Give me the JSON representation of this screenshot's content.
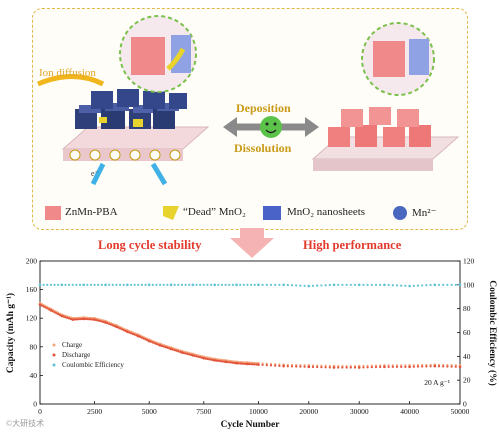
{
  "schematic": {
    "ion_diffusion": "Ion diffusion",
    "deposition": "Deposition",
    "dissolution": "Dissolution",
    "electron_label": "e⁻",
    "legend": [
      {
        "label": "ZnMn-PBA",
        "color": "#f08a8a"
      },
      {
        "label": "“Dead” MnO₂",
        "color": "#e8d22c"
      },
      {
        "label": "MnO₂ nanosheets",
        "color": "#4a63c8"
      },
      {
        "label": "Mn²⁻",
        "color": "#4a67c0"
      }
    ],
    "banner_left": "Long cycle stability",
    "banner_right": "High performance"
  },
  "chart_data": {
    "type": "scatter",
    "xlabel": "Cycle Number",
    "ylabel": "Capacity (mAh g⁻¹)",
    "y2label": "Coulombic Efficiency (%)",
    "xlim": [
      0,
      50000
    ],
    "ylim": [
      0,
      200
    ],
    "y2lim": [
      0,
      120
    ],
    "xticks": [
      "0",
      "2500",
      "5000",
      "7500",
      "10000",
      "20000",
      "30000",
      "40000",
      "50000"
    ],
    "yticks": [
      "0",
      "40",
      "80",
      "120",
      "160",
      "200"
    ],
    "y2ticks": [
      "0",
      "20",
      "40",
      "60",
      "80",
      "100",
      "120"
    ],
    "annotation": "20 A g⁻¹",
    "series": [
      {
        "name": "Charge",
        "color": "#f3a37a",
        "x": [
          0,
          500,
          1000,
          1500,
          2000,
          2500,
          3000,
          3500,
          4000,
          4500,
          5000,
          5500,
          6000,
          6500,
          7000,
          7500,
          8000,
          8500,
          9000,
          9500,
          10000,
          15000,
          20000,
          25000,
          30000,
          35000,
          40000,
          45000,
          50000
        ],
        "y": [
          141,
          133,
          125,
          120,
          121,
          120,
          116,
          110,
          103,
          97,
          90,
          84,
          79,
          74,
          70,
          66,
          63,
          61,
          59,
          58,
          57,
          55,
          54,
          53,
          53,
          54,
          54,
          55,
          54
        ]
      },
      {
        "name": "Discharge",
        "color": "#e2543a",
        "x": [
          0,
          500,
          1000,
          1500,
          2000,
          2500,
          3000,
          3500,
          4000,
          4500,
          5000,
          5500,
          6000,
          6500,
          7000,
          7500,
          8000,
          8500,
          9000,
          9500,
          10000,
          15000,
          20000,
          25000,
          30000,
          35000,
          40000,
          45000,
          50000
        ],
        "y": [
          139,
          131,
          123,
          118,
          119,
          118,
          114,
          108,
          101,
          95,
          88,
          82,
          77,
          72,
          68,
          64,
          61,
          59,
          57,
          56,
          55,
          53,
          52,
          51,
          51,
          52,
          52,
          53,
          52
        ]
      },
      {
        "name": "Coulombic Efficiency",
        "color": "#5fc3d4",
        "axis": "right",
        "x": [
          0,
          1000,
          2000,
          3000,
          4000,
          5000,
          6000,
          7000,
          8000,
          9000,
          10000,
          15000,
          20000,
          25000,
          30000,
          35000,
          40000,
          45000,
          50000
        ],
        "y": [
          100,
          100,
          100,
          100,
          100,
          100,
          100,
          100,
          100,
          100,
          100,
          100,
          99,
          100,
          100,
          100,
          99,
          100,
          100
        ]
      }
    ],
    "legend_position": "bottom-left"
  },
  "watermark": "©大研技术"
}
